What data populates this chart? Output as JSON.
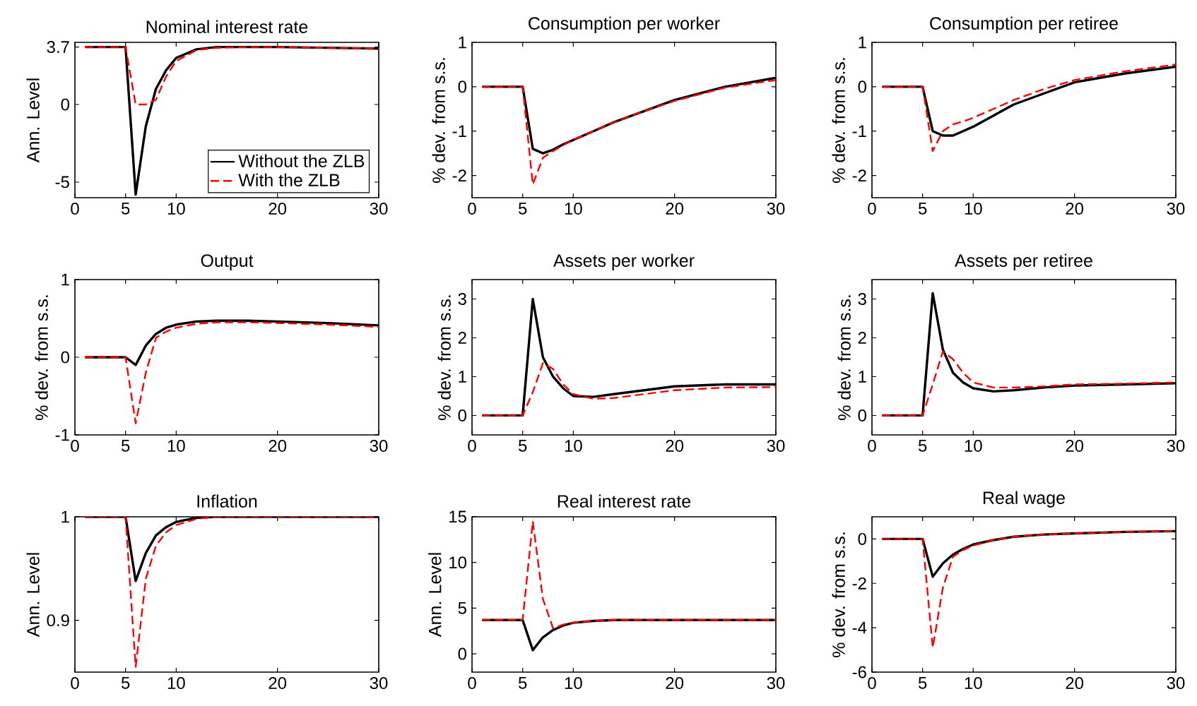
{
  "chart_data": [
    {
      "type": "line",
      "title": "Nominal interest rate",
      "ylabel": "Ann. Level",
      "x": [
        1,
        2,
        3,
        4,
        5,
        6,
        7,
        8,
        9,
        10,
        12,
        14,
        17,
        20,
        25,
        30
      ],
      "xlim": [
        0,
        30
      ],
      "ylim": [
        -6,
        4
      ],
      "xticks": [
        0,
        5,
        10,
        20,
        30
      ],
      "yticks": [
        -5,
        0,
        3.7
      ],
      "legend": "bottom right",
      "grid": false,
      "marker": "none",
      "series": [
        {
          "name": "Without the ZLB",
          "color": "#000000",
          "line_style": "solid",
          "values": [
            3.7,
            3.7,
            3.7,
            3.7,
            3.7,
            -5.8,
            -1.4,
            1.0,
            2.2,
            3.0,
            3.55,
            3.7,
            3.7,
            3.7,
            3.65,
            3.6
          ]
        },
        {
          "name": "With the ZLB",
          "color": "#ff0000",
          "line_style": "dashed",
          "values": [
            3.7,
            3.7,
            3.7,
            3.7,
            3.7,
            0,
            0,
            0.3,
            1.8,
            2.8,
            3.5,
            3.65,
            3.7,
            3.7,
            3.65,
            3.6
          ]
        }
      ]
    },
    {
      "type": "line",
      "title": "Consumption per worker",
      "ylabel": "% dev. from s.s.",
      "x": [
        1,
        2,
        3,
        4,
        5,
        6,
        7,
        8,
        9,
        10,
        12,
        14,
        17,
        20,
        25,
        30
      ],
      "xlim": [
        0,
        30
      ],
      "ylim": [
        -2.5,
        1
      ],
      "xticks": [
        0,
        5,
        10,
        20,
        30
      ],
      "yticks": [
        -2,
        -1,
        0,
        1
      ],
      "grid": false,
      "marker": "none",
      "series": [
        {
          "color": "#000000",
          "line_style": "solid",
          "values": [
            0,
            0,
            0,
            0,
            0,
            -1.4,
            -1.5,
            -1.42,
            -1.3,
            -1.2,
            -1.0,
            -0.8,
            -0.55,
            -0.3,
            0.0,
            0.2
          ]
        },
        {
          "color": "#ff0000",
          "line_style": "dashed",
          "values": [
            0,
            0,
            0,
            0,
            0,
            -2.2,
            -1.6,
            -1.45,
            -1.32,
            -1.2,
            -1.0,
            -0.8,
            -0.55,
            -0.32,
            -0.02,
            0.15
          ]
        }
      ]
    },
    {
      "type": "line",
      "title": "Consumption per retiree",
      "ylabel": "% dev. from s.s.",
      "x": [
        1,
        2,
        3,
        4,
        5,
        6,
        7,
        8,
        9,
        10,
        12,
        14,
        17,
        20,
        25,
        30
      ],
      "xlim": [
        0,
        30
      ],
      "ylim": [
        -2.5,
        1
      ],
      "xticks": [
        0,
        5,
        10,
        20,
        30
      ],
      "yticks": [
        -2,
        -1,
        0,
        1
      ],
      "grid": false,
      "marker": "none",
      "series": [
        {
          "color": "#000000",
          "line_style": "solid",
          "values": [
            0,
            0,
            0,
            0,
            0,
            -1.0,
            -1.1,
            -1.1,
            -1.0,
            -0.9,
            -0.65,
            -0.4,
            -0.15,
            0.1,
            0.3,
            0.45
          ]
        },
        {
          "color": "#ff0000",
          "line_style": "dashed",
          "values": [
            0,
            0,
            0,
            0,
            0,
            -1.45,
            -1.0,
            -0.85,
            -0.78,
            -0.7,
            -0.5,
            -0.3,
            -0.05,
            0.15,
            0.35,
            0.5
          ]
        }
      ]
    },
    {
      "type": "line",
      "title": "Output",
      "ylabel": "% dev. from s.s.",
      "x": [
        1,
        2,
        3,
        4,
        5,
        6,
        7,
        8,
        9,
        10,
        12,
        14,
        17,
        20,
        25,
        30
      ],
      "xlim": [
        0,
        30
      ],
      "ylim": [
        -1,
        1
      ],
      "xticks": [
        0,
        5,
        10,
        20,
        30
      ],
      "yticks": [
        -1,
        0,
        1
      ],
      "grid": false,
      "marker": "none",
      "series": [
        {
          "color": "#000000",
          "line_style": "solid",
          "values": [
            0,
            0,
            0,
            0,
            0,
            -0.1,
            0.15,
            0.3,
            0.38,
            0.42,
            0.46,
            0.47,
            0.47,
            0.46,
            0.44,
            0.41
          ]
        },
        {
          "color": "#ff0000",
          "line_style": "dashed",
          "values": [
            0,
            0,
            0,
            0,
            0,
            -0.85,
            -0.2,
            0.25,
            0.33,
            0.38,
            0.43,
            0.45,
            0.45,
            0.44,
            0.42,
            0.39
          ]
        }
      ]
    },
    {
      "type": "line",
      "title": "Assets per worker",
      "ylabel": "% dev. from s.s.",
      "x": [
        1,
        2,
        3,
        4,
        5,
        6,
        7,
        8,
        9,
        10,
        12,
        14,
        17,
        20,
        25,
        30
      ],
      "xlim": [
        0,
        30
      ],
      "ylim": [
        -0.5,
        3.5
      ],
      "xticks": [
        0,
        5,
        10,
        20,
        30
      ],
      "yticks": [
        0,
        1,
        2,
        3
      ],
      "grid": false,
      "marker": "none",
      "series": [
        {
          "color": "#000000",
          "line_style": "solid",
          "values": [
            0,
            0,
            0,
            0,
            0,
            3.0,
            1.5,
            1.0,
            0.7,
            0.5,
            0.48,
            0.55,
            0.65,
            0.75,
            0.8,
            0.8
          ]
        },
        {
          "color": "#ff0000",
          "line_style": "dashed",
          "values": [
            0,
            0,
            0,
            0,
            0,
            0.6,
            1.35,
            1.2,
            0.8,
            0.55,
            0.43,
            0.45,
            0.55,
            0.65,
            0.72,
            0.73
          ]
        }
      ]
    },
    {
      "type": "line",
      "title": "Assets per retiree",
      "ylabel": "% dev. from s.s.",
      "x": [
        1,
        2,
        3,
        4,
        5,
        6,
        7,
        8,
        9,
        10,
        12,
        14,
        17,
        20,
        25,
        30
      ],
      "xlim": [
        0,
        30
      ],
      "ylim": [
        -0.5,
        3.5
      ],
      "xticks": [
        0,
        5,
        10,
        20,
        30
      ],
      "yticks": [
        0,
        1,
        2,
        3
      ],
      "grid": false,
      "marker": "none",
      "series": [
        {
          "color": "#000000",
          "line_style": "solid",
          "values": [
            0,
            0,
            0,
            0,
            0,
            3.15,
            1.7,
            1.1,
            0.85,
            0.7,
            0.62,
            0.65,
            0.72,
            0.77,
            0.8,
            0.83
          ]
        },
        {
          "color": "#ff0000",
          "line_style": "dashed",
          "values": [
            0,
            0,
            0,
            0,
            0,
            0.8,
            1.65,
            1.45,
            1.1,
            0.85,
            0.72,
            0.72,
            0.75,
            0.8,
            0.82,
            0.85
          ]
        }
      ]
    },
    {
      "type": "line",
      "title": "Inflation",
      "ylabel": "Ann. Level",
      "x": [
        1,
        2,
        3,
        4,
        5,
        6,
        7,
        8,
        9,
        10,
        12,
        14,
        17,
        20,
        25,
        30
      ],
      "xlim": [
        0,
        30
      ],
      "ylim": [
        0.85,
        1
      ],
      "xticks": [
        0,
        5,
        10,
        20,
        30
      ],
      "yticks": [
        0.9,
        1
      ],
      "grid": false,
      "marker": "none",
      "series": [
        {
          "color": "#000000",
          "line_style": "solid",
          "values": [
            1,
            1,
            1,
            1,
            1,
            0.938,
            0.965,
            0.982,
            0.99,
            0.995,
            0.999,
            1,
            1,
            1,
            1,
            1
          ]
        },
        {
          "color": "#ff0000",
          "line_style": "dashed",
          "values": [
            1,
            1,
            1,
            1,
            1,
            0.855,
            0.94,
            0.972,
            0.985,
            0.992,
            0.998,
            1,
            1,
            1,
            1,
            1
          ]
        }
      ]
    },
    {
      "type": "line",
      "title": "Real interest rate",
      "ylabel": "Ann. Level",
      "x": [
        1,
        2,
        3,
        4,
        5,
        6,
        7,
        8,
        9,
        10,
        12,
        14,
        17,
        20,
        25,
        30
      ],
      "xlim": [
        0,
        30
      ],
      "ylim": [
        -2,
        15
      ],
      "xticks": [
        0,
        5,
        10,
        20,
        30
      ],
      "yticks": [
        0,
        5,
        10,
        15
      ],
      "grid": false,
      "marker": "none",
      "series": [
        {
          "color": "#000000",
          "line_style": "solid",
          "values": [
            3.7,
            3.7,
            3.7,
            3.7,
            3.7,
            0.4,
            1.8,
            2.6,
            3.1,
            3.4,
            3.6,
            3.7,
            3.7,
            3.7,
            3.7,
            3.7
          ]
        },
        {
          "color": "#ff0000",
          "line_style": "dashed",
          "values": [
            3.7,
            3.7,
            3.7,
            3.7,
            3.7,
            14.5,
            6,
            2.8,
            3.2,
            3.4,
            3.6,
            3.7,
            3.7,
            3.7,
            3.7,
            3.7
          ]
        }
      ]
    },
    {
      "type": "line",
      "title": "Real wage",
      "ylabel": "% dev. from s.s.",
      "x": [
        1,
        2,
        3,
        4,
        5,
        6,
        7,
        8,
        9,
        10,
        12,
        14,
        17,
        20,
        25,
        30
      ],
      "xlim": [
        0,
        30
      ],
      "ylim": [
        -6,
        1
      ],
      "xticks": [
        0,
        5,
        10,
        20,
        30
      ],
      "yticks": [
        -6,
        -4,
        -2,
        0
      ],
      "grid": false,
      "marker": "none",
      "series": [
        {
          "color": "#000000",
          "line_style": "solid",
          "values": [
            0,
            0,
            0,
            0,
            0,
            -1.7,
            -1.1,
            -0.7,
            -0.45,
            -0.25,
            -0.05,
            0.1,
            0.2,
            0.25,
            0.32,
            0.35
          ]
        },
        {
          "color": "#ff0000",
          "line_style": "dashed",
          "values": [
            0,
            0,
            0,
            0,
            0,
            -4.9,
            -2.2,
            -0.8,
            -0.5,
            -0.3,
            -0.05,
            0.1,
            0.2,
            0.25,
            0.32,
            0.35
          ]
        }
      ]
    }
  ]
}
